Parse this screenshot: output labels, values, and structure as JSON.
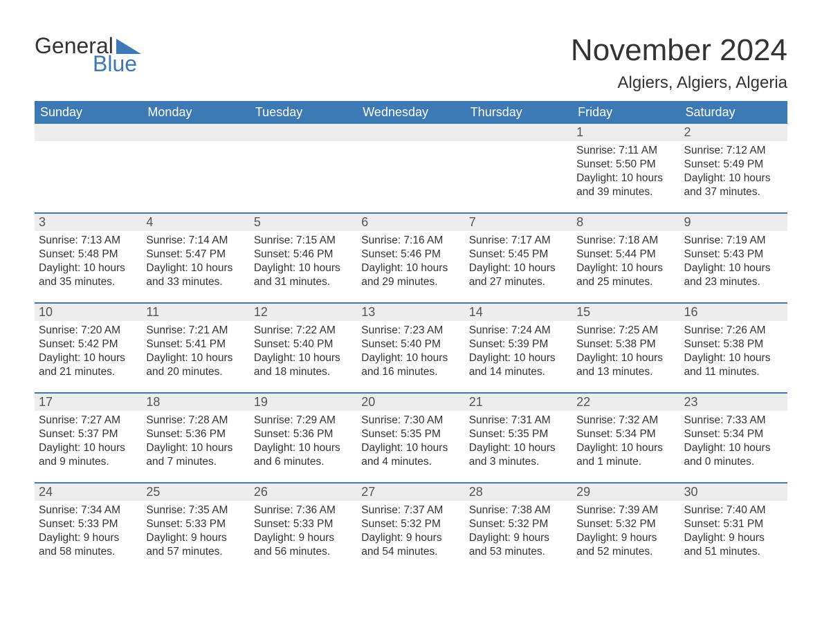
{
  "logo": {
    "word1": "General",
    "word2": "Blue"
  },
  "title": "November 2024",
  "location": "Algiers, Algiers, Algeria",
  "theme": {
    "header_bg": "#3d79b5",
    "header_text": "#ffffff",
    "daynum_bg": "#ededed",
    "body_text": "#333333",
    "page_bg": "#ffffff",
    "week_divider": "#3d79b5"
  },
  "typography": {
    "title_fontsize": 44,
    "location_fontsize": 24,
    "dayheader_fontsize": 18,
    "daynum_fontsize": 18,
    "body_fontsize": 15.5,
    "logo_fontsize": 32
  },
  "day_labels": [
    "Sunday",
    "Monday",
    "Tuesday",
    "Wednesday",
    "Thursday",
    "Friday",
    "Saturday"
  ],
  "weeks": [
    [
      null,
      null,
      null,
      null,
      null,
      {
        "n": "1",
        "sunrise": "Sunrise: 7:11 AM",
        "sunset": "Sunset: 5:50 PM",
        "day1": "Daylight: 10 hours",
        "day2": "and 39 minutes."
      },
      {
        "n": "2",
        "sunrise": "Sunrise: 7:12 AM",
        "sunset": "Sunset: 5:49 PM",
        "day1": "Daylight: 10 hours",
        "day2": "and 37 minutes."
      }
    ],
    [
      {
        "n": "3",
        "sunrise": "Sunrise: 7:13 AM",
        "sunset": "Sunset: 5:48 PM",
        "day1": "Daylight: 10 hours",
        "day2": "and 35 minutes."
      },
      {
        "n": "4",
        "sunrise": "Sunrise: 7:14 AM",
        "sunset": "Sunset: 5:47 PM",
        "day1": "Daylight: 10 hours",
        "day2": "and 33 minutes."
      },
      {
        "n": "5",
        "sunrise": "Sunrise: 7:15 AM",
        "sunset": "Sunset: 5:46 PM",
        "day1": "Daylight: 10 hours",
        "day2": "and 31 minutes."
      },
      {
        "n": "6",
        "sunrise": "Sunrise: 7:16 AM",
        "sunset": "Sunset: 5:46 PM",
        "day1": "Daylight: 10 hours",
        "day2": "and 29 minutes."
      },
      {
        "n": "7",
        "sunrise": "Sunrise: 7:17 AM",
        "sunset": "Sunset: 5:45 PM",
        "day1": "Daylight: 10 hours",
        "day2": "and 27 minutes."
      },
      {
        "n": "8",
        "sunrise": "Sunrise: 7:18 AM",
        "sunset": "Sunset: 5:44 PM",
        "day1": "Daylight: 10 hours",
        "day2": "and 25 minutes."
      },
      {
        "n": "9",
        "sunrise": "Sunrise: 7:19 AM",
        "sunset": "Sunset: 5:43 PM",
        "day1": "Daylight: 10 hours",
        "day2": "and 23 minutes."
      }
    ],
    [
      {
        "n": "10",
        "sunrise": "Sunrise: 7:20 AM",
        "sunset": "Sunset: 5:42 PM",
        "day1": "Daylight: 10 hours",
        "day2": "and 21 minutes."
      },
      {
        "n": "11",
        "sunrise": "Sunrise: 7:21 AM",
        "sunset": "Sunset: 5:41 PM",
        "day1": "Daylight: 10 hours",
        "day2": "and 20 minutes."
      },
      {
        "n": "12",
        "sunrise": "Sunrise: 7:22 AM",
        "sunset": "Sunset: 5:40 PM",
        "day1": "Daylight: 10 hours",
        "day2": "and 18 minutes."
      },
      {
        "n": "13",
        "sunrise": "Sunrise: 7:23 AM",
        "sunset": "Sunset: 5:40 PM",
        "day1": "Daylight: 10 hours",
        "day2": "and 16 minutes."
      },
      {
        "n": "14",
        "sunrise": "Sunrise: 7:24 AM",
        "sunset": "Sunset: 5:39 PM",
        "day1": "Daylight: 10 hours",
        "day2": "and 14 minutes."
      },
      {
        "n": "15",
        "sunrise": "Sunrise: 7:25 AM",
        "sunset": "Sunset: 5:38 PM",
        "day1": "Daylight: 10 hours",
        "day2": "and 13 minutes."
      },
      {
        "n": "16",
        "sunrise": "Sunrise: 7:26 AM",
        "sunset": "Sunset: 5:38 PM",
        "day1": "Daylight: 10 hours",
        "day2": "and 11 minutes."
      }
    ],
    [
      {
        "n": "17",
        "sunrise": "Sunrise: 7:27 AM",
        "sunset": "Sunset: 5:37 PM",
        "day1": "Daylight: 10 hours",
        "day2": "and 9 minutes."
      },
      {
        "n": "18",
        "sunrise": "Sunrise: 7:28 AM",
        "sunset": "Sunset: 5:36 PM",
        "day1": "Daylight: 10 hours",
        "day2": "and 7 minutes."
      },
      {
        "n": "19",
        "sunrise": "Sunrise: 7:29 AM",
        "sunset": "Sunset: 5:36 PM",
        "day1": "Daylight: 10 hours",
        "day2": "and 6 minutes."
      },
      {
        "n": "20",
        "sunrise": "Sunrise: 7:30 AM",
        "sunset": "Sunset: 5:35 PM",
        "day1": "Daylight: 10 hours",
        "day2": "and 4 minutes."
      },
      {
        "n": "21",
        "sunrise": "Sunrise: 7:31 AM",
        "sunset": "Sunset: 5:35 PM",
        "day1": "Daylight: 10 hours",
        "day2": "and 3 minutes."
      },
      {
        "n": "22",
        "sunrise": "Sunrise: 7:32 AM",
        "sunset": "Sunset: 5:34 PM",
        "day1": "Daylight: 10 hours",
        "day2": "and 1 minute."
      },
      {
        "n": "23",
        "sunrise": "Sunrise: 7:33 AM",
        "sunset": "Sunset: 5:34 PM",
        "day1": "Daylight: 10 hours",
        "day2": "and 0 minutes."
      }
    ],
    [
      {
        "n": "24",
        "sunrise": "Sunrise: 7:34 AM",
        "sunset": "Sunset: 5:33 PM",
        "day1": "Daylight: 9 hours",
        "day2": "and 58 minutes."
      },
      {
        "n": "25",
        "sunrise": "Sunrise: 7:35 AM",
        "sunset": "Sunset: 5:33 PM",
        "day1": "Daylight: 9 hours",
        "day2": "and 57 minutes."
      },
      {
        "n": "26",
        "sunrise": "Sunrise: 7:36 AM",
        "sunset": "Sunset: 5:33 PM",
        "day1": "Daylight: 9 hours",
        "day2": "and 56 minutes."
      },
      {
        "n": "27",
        "sunrise": "Sunrise: 7:37 AM",
        "sunset": "Sunset: 5:32 PM",
        "day1": "Daylight: 9 hours",
        "day2": "and 54 minutes."
      },
      {
        "n": "28",
        "sunrise": "Sunrise: 7:38 AM",
        "sunset": "Sunset: 5:32 PM",
        "day1": "Daylight: 9 hours",
        "day2": "and 53 minutes."
      },
      {
        "n": "29",
        "sunrise": "Sunrise: 7:39 AM",
        "sunset": "Sunset: 5:32 PM",
        "day1": "Daylight: 9 hours",
        "day2": "and 52 minutes."
      },
      {
        "n": "30",
        "sunrise": "Sunrise: 7:40 AM",
        "sunset": "Sunset: 5:31 PM",
        "day1": "Daylight: 9 hours",
        "day2": "and 51 minutes."
      }
    ]
  ]
}
